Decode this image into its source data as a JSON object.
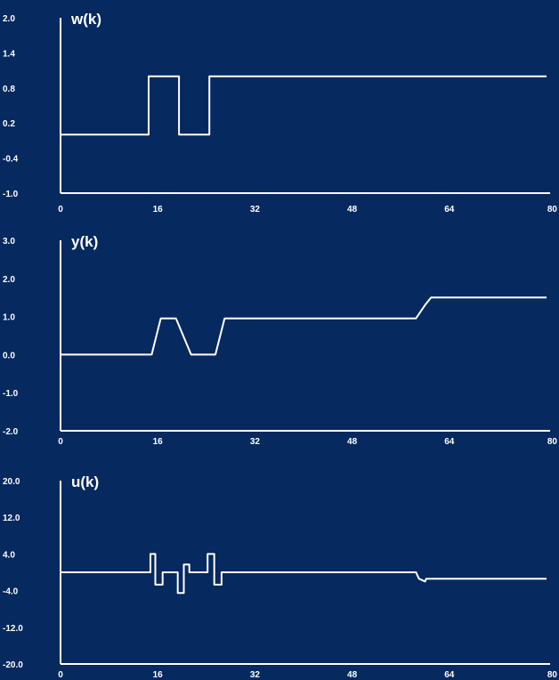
{
  "chart_data": [
    {
      "type": "line",
      "title": "w(k)",
      "xlabel": "",
      "ylabel": "",
      "xlim": [
        0,
        80
      ],
      "ylim": [
        -1.0,
        2.0
      ],
      "x_ticks": [
        "0",
        "16",
        "32",
        "48",
        "64",
        "80"
      ],
      "y_ticks": [
        "2.0",
        "1.4",
        "0.8",
        "0.2",
        "-0.4",
        "-1.0"
      ],
      "grid": false,
      "series": [
        {
          "x": [
            0,
            14.5,
            14.5,
            19.5,
            19.5,
            24.5,
            24.5,
            80
          ],
          "y": [
            0,
            0,
            1,
            1,
            0,
            0,
            1,
            1
          ]
        }
      ]
    },
    {
      "type": "line",
      "title": "y(k)",
      "xlabel": "",
      "ylabel": "",
      "xlim": [
        0,
        80
      ],
      "ylim": [
        -2.0,
        3.0
      ],
      "x_ticks": [
        "0",
        "16",
        "32",
        "48",
        "64",
        "80"
      ],
      "y_ticks": [
        "3.0",
        "2.0",
        "1.0",
        "0.0",
        "-1.0",
        "-2.0"
      ],
      "grid": false,
      "series": [
        {
          "x": [
            0,
            15,
            16.5,
            19,
            21.5,
            24,
            25.5,
            27,
            58.5,
            60,
            61,
            80
          ],
          "y": [
            0,
            0,
            0.95,
            0.95,
            0,
            0,
            0,
            0.95,
            0.95,
            1.3,
            1.5,
            1.5
          ]
        }
      ]
    },
    {
      "type": "line",
      "title": "u(k)",
      "xlabel": "",
      "ylabel": "",
      "xlim": [
        0,
        80
      ],
      "ylim": [
        -20.0,
        20.0
      ],
      "x_ticks": [
        "0",
        "16",
        "32",
        "48",
        "64",
        "80"
      ],
      "y_ticks": [
        "20.0",
        "12.0",
        "4.0",
        "-4.0",
        "-12.0",
        "-20.0"
      ],
      "grid": false,
      "series": [
        {
          "x": [
            0,
            14.8,
            14.8,
            15.6,
            15.6,
            16.8,
            16.8,
            19.3,
            19.3,
            20.3,
            20.3,
            21.2,
            21.2,
            22.0,
            22.0,
            24.2,
            24.2,
            25.3,
            25.3,
            26.5,
            26.5,
            80.0
          ],
          "y": [
            0,
            0,
            4.0,
            4.0,
            -2.7,
            -2.7,
            0,
            0,
            -4.5,
            -4.5,
            1.7,
            1.7,
            0,
            0,
            0,
            0,
            4.0,
            4.0,
            -2.7,
            -2.7,
            0,
            0
          ]
        }
      ],
      "extra_segment": {
        "x": [
          58.5,
          59.0,
          60.0,
          60.2,
          80
        ],
        "y": [
          0,
          -1.4,
          -2.0,
          -1.4,
          -1.4
        ]
      }
    }
  ]
}
